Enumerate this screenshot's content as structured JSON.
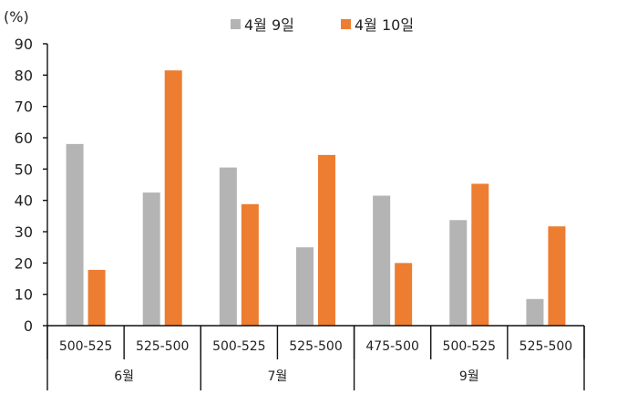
{
  "chart_data": {
    "type": "bar",
    "unit_label": "(%)",
    "categories": [
      "500-525",
      "525-500",
      "500-525",
      "525-500",
      "475-500",
      "500-525",
      "525-500"
    ],
    "groups": [
      {
        "label": "6월",
        "count": 2
      },
      {
        "label": "7월",
        "count": 2
      },
      {
        "label": "9월",
        "count": 3
      }
    ],
    "series": [
      {
        "name": "4월 9일",
        "color": "#b4b4b4",
        "values": [
          58,
          42.5,
          50.5,
          25,
          41.5,
          33.7,
          8.5
        ]
      },
      {
        "name": "4월 10일",
        "color": "#ed7d31",
        "values": [
          17.8,
          81.5,
          38.8,
          54.5,
          20,
          45.3,
          31.7
        ]
      }
    ],
    "ylim": [
      0,
      90
    ],
    "yticks": [
      0,
      10,
      20,
      30,
      40,
      50,
      60,
      70,
      80,
      90
    ],
    "legend_position": "top-center",
    "grid": false
  }
}
